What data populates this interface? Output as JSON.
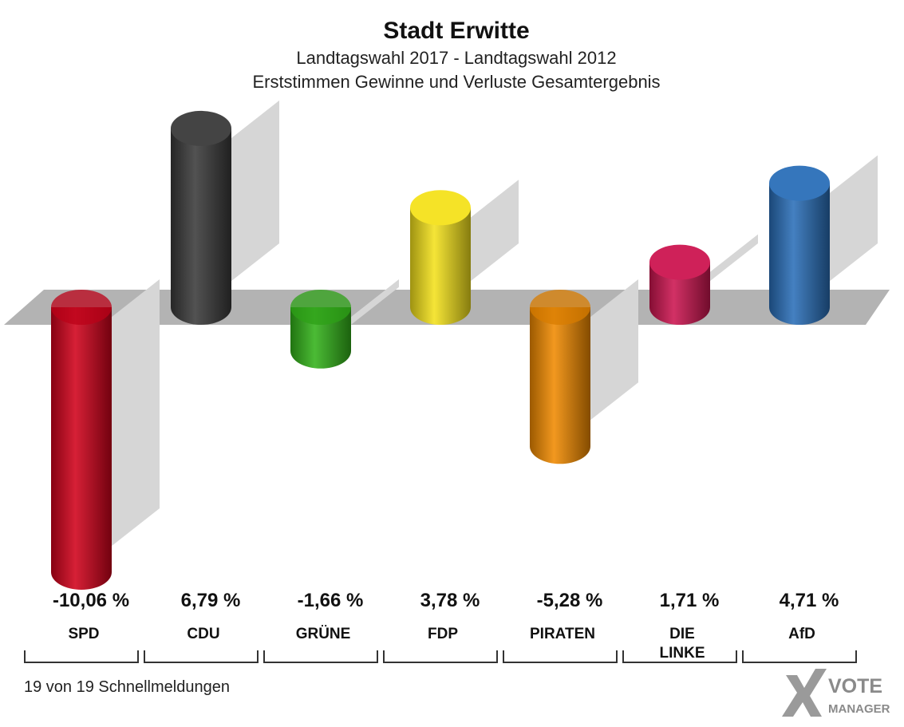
{
  "chart_data": {
    "type": "bar",
    "title": "Stadt Erwitte",
    "subtitle": [
      "Landtagswahl 2017 - Landtagswahl 2012",
      "Erststimmen Gewinne und Verluste Gesamtergebnis"
    ],
    "categories": [
      "SPD",
      "CDU",
      "GRÜNE",
      "FDP",
      "PIRATEN",
      "DIE LINKE",
      "AfD"
    ],
    "category_lines": [
      [
        "SPD"
      ],
      [
        "CDU"
      ],
      [
        "GRÜNE"
      ],
      [
        "FDP"
      ],
      [
        "PIRATEN"
      ],
      [
        "DIE",
        "LINKE"
      ],
      [
        "AfD"
      ]
    ],
    "values": [
      -10.06,
      6.79,
      -1.66,
      3.78,
      -5.28,
      1.71,
      4.71
    ],
    "value_labels": [
      "-10,06 %",
      "6,79 %",
      "-1,66 %",
      "3,78 %",
      "-5,28 %",
      "1,71 %",
      "4,71 %"
    ],
    "colors": [
      "#d0021b",
      "#3a3a3a",
      "#33b21a",
      "#f4e21c",
      "#f08a00",
      "#cc1550",
      "#2a6fb8"
    ],
    "ylim": [
      -10.06,
      6.79
    ],
    "grid": false,
    "legend": "none"
  },
  "footer": {
    "note": "19 von 19 Schnellmeldungen",
    "logo_text_1": "VOTE",
    "logo_text_2": "MANAGER"
  }
}
